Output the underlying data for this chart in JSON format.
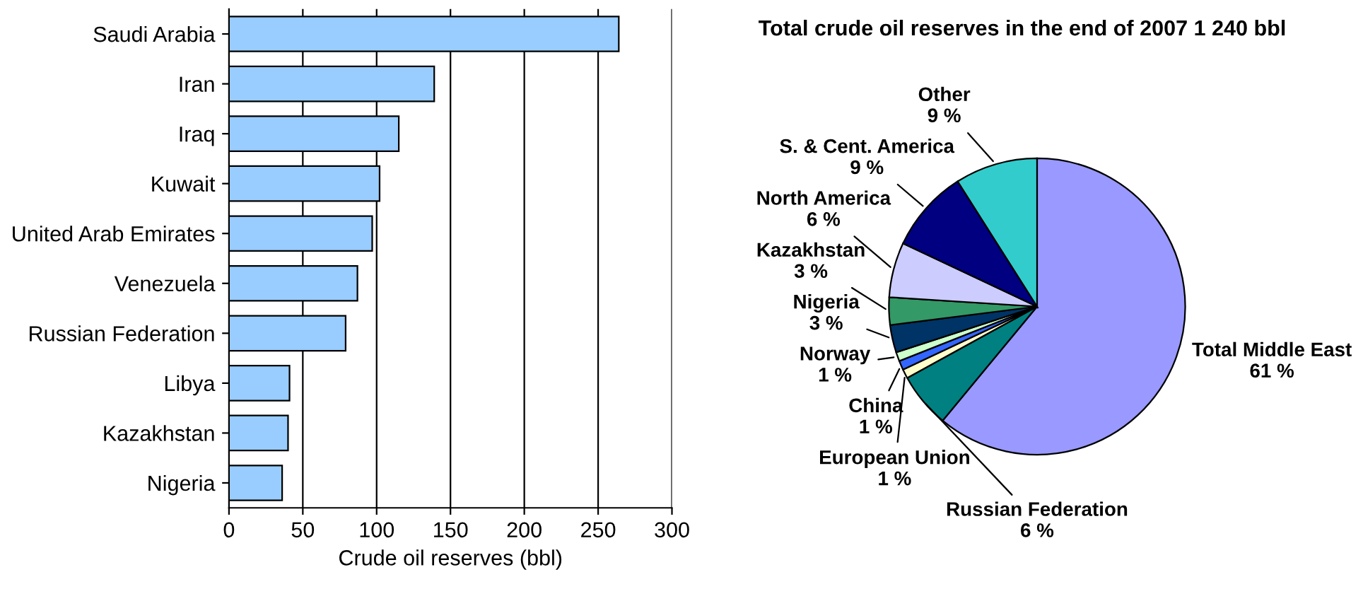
{
  "chart_data": [
    {
      "type": "bar",
      "orientation": "horizontal",
      "xlabel": "Crude oil reserves (bbl)",
      "categories": [
        "Saudi Arabia",
        "Iran",
        "Iraq",
        "Kuwait",
        "United Arab Emirates",
        "Venezuela",
        "Russian Federation",
        "Libya",
        "Kazakhstan",
        "Nigeria"
      ],
      "values": [
        264,
        139,
        115,
        102,
        97,
        87,
        79,
        41,
        40,
        36
      ],
      "color": "#99ccff",
      "xlim": [
        0,
        300
      ],
      "xticks": [
        0,
        50,
        100,
        150,
        200,
        250,
        300
      ],
      "grid": "x"
    },
    {
      "type": "pie",
      "title": "Total crude oil reserves in the end of 2007 1 240 bbl",
      "categories": [
        "Total Middle East",
        "Russian Federation",
        "European Union",
        "China",
        "Norway",
        "Nigeria",
        "Kazakhstan",
        "North America",
        "S. & Cent. America",
        "Other"
      ],
      "values": [
        61,
        6,
        1,
        1,
        1,
        3,
        3,
        6,
        9,
        9
      ],
      "value_labels": [
        "61 %",
        "6 %",
        "1 %",
        "1 %",
        "1 %",
        "3 %",
        "3 %",
        "6 %",
        "9 %",
        "9 %"
      ],
      "colors": [
        "#9999ff",
        "#008080",
        "#ffffcc",
        "#3366ff",
        "#ccffcc",
        "#003366",
        "#339966",
        "#ccccff",
        "#000080",
        "#33cccc"
      ]
    }
  ]
}
